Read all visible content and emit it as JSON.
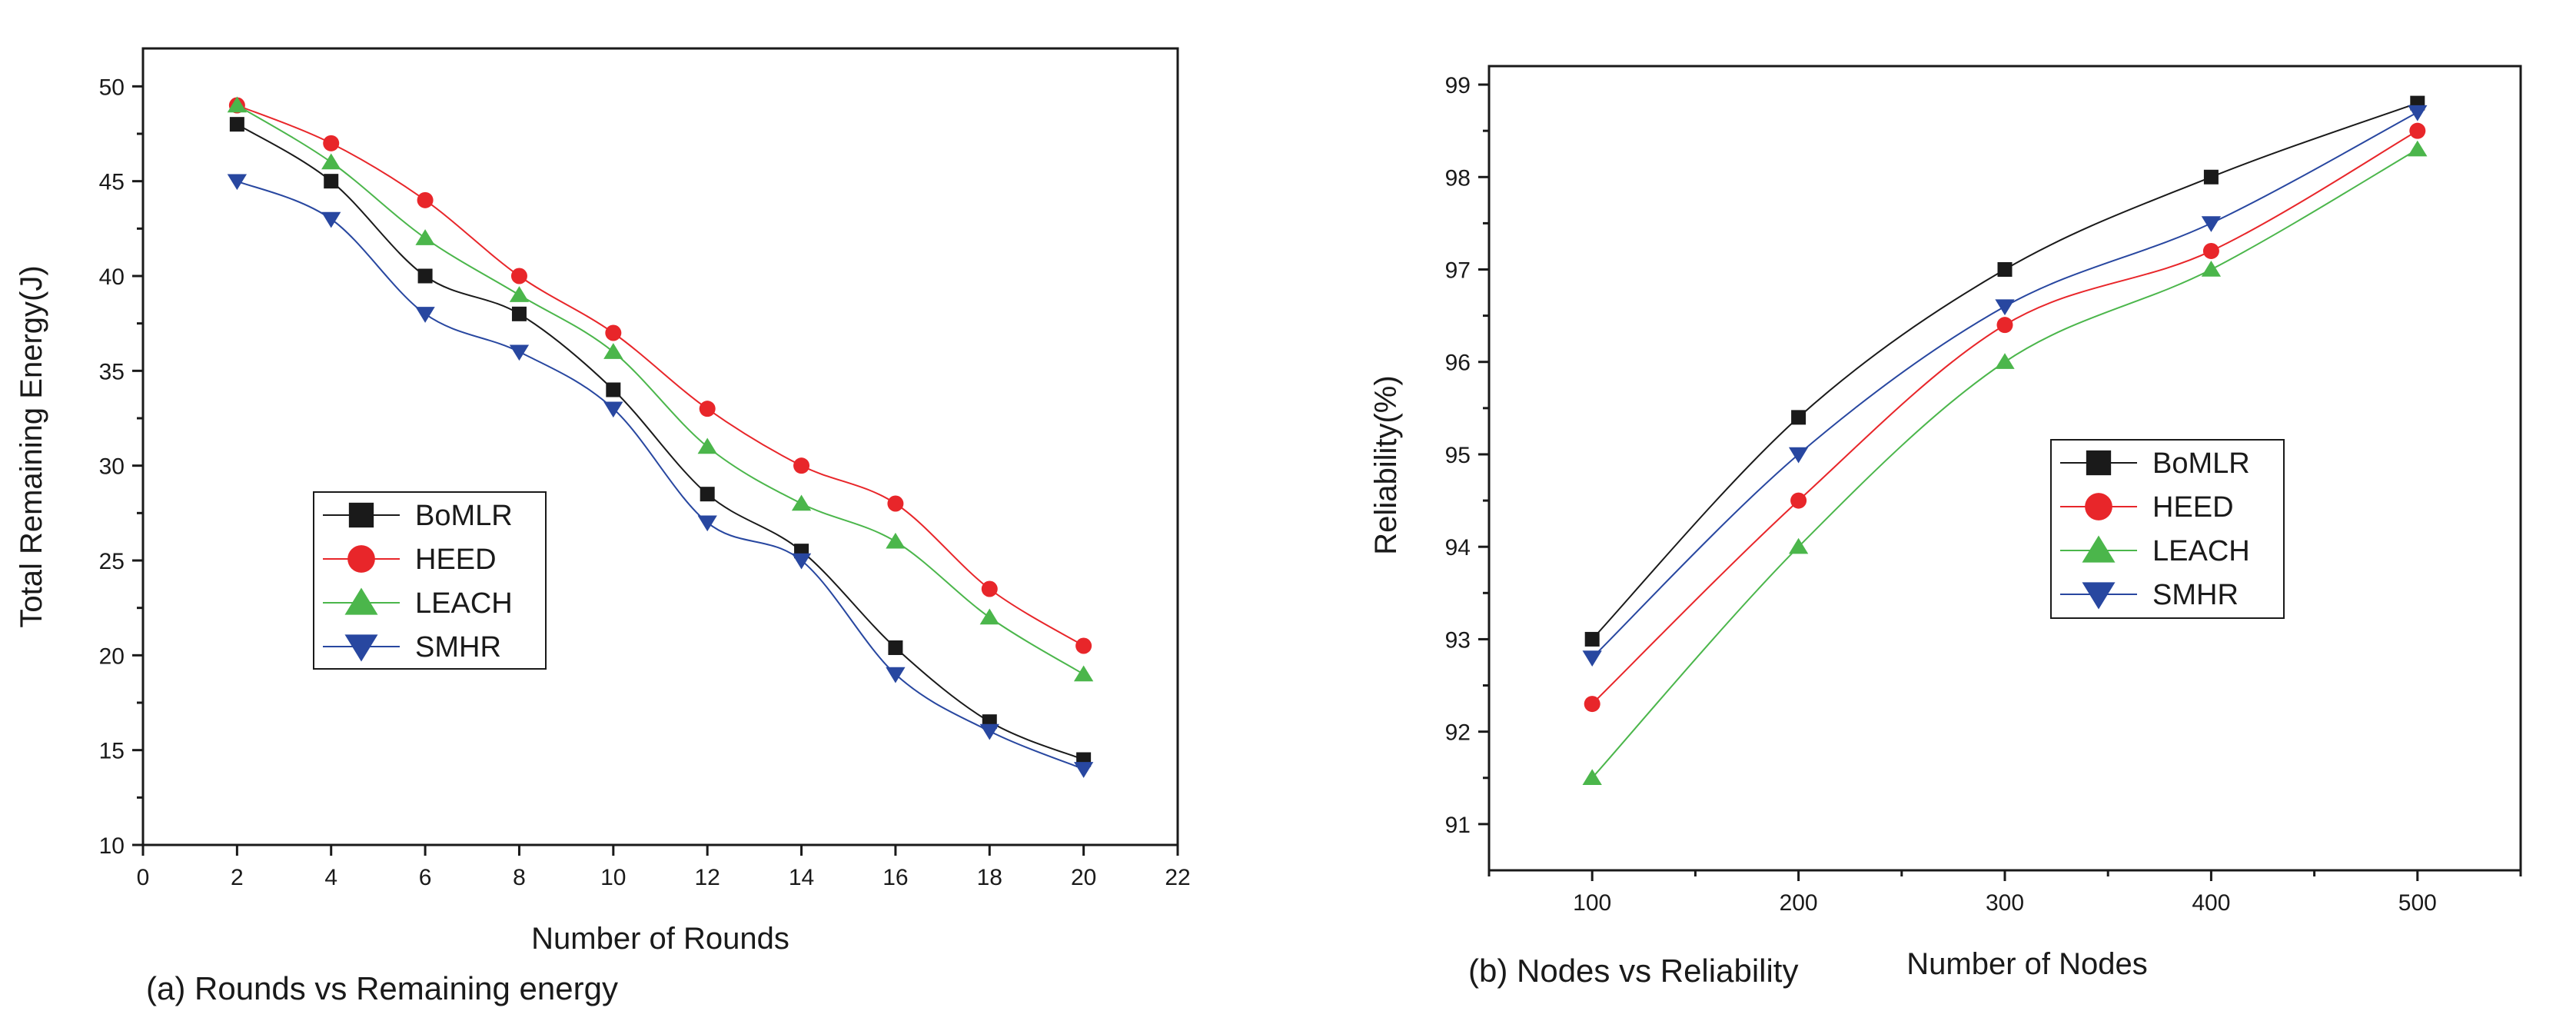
{
  "colors": {
    "BoMLR": "#1a1a1a",
    "HEED": "#e8262a",
    "LEACH": "#4bb64b",
    "SMHR": "#2847a0"
  },
  "chart_data": [
    {
      "type": "line",
      "caption": "(a) Rounds vs Remaining energy",
      "xlabel": "Number of Rounds",
      "ylabel": "Total Remaining Energy(J)",
      "xlim": [
        0,
        22
      ],
      "ylim": [
        10,
        52
      ],
      "xticks": [
        0,
        2,
        4,
        6,
        8,
        10,
        12,
        14,
        16,
        18,
        20,
        22
      ],
      "yticks": [
        10,
        15,
        20,
        25,
        30,
        35,
        40,
        45,
        50
      ],
      "legend_position": "center-left",
      "x": [
        2,
        4,
        6,
        8,
        10,
        12,
        14,
        16,
        18,
        20
      ],
      "series": [
        {
          "name": "BoMLR",
          "marker": "square",
          "values": [
            48,
            45,
            40,
            38,
            34,
            28.5,
            25.5,
            20.4,
            16.5,
            14.5
          ]
        },
        {
          "name": "HEED",
          "marker": "circle",
          "values": [
            49,
            47,
            44,
            40,
            37,
            33,
            30,
            28,
            23.5,
            20.5
          ]
        },
        {
          "name": "LEACH",
          "marker": "triangle-up",
          "values": [
            49,
            46,
            42,
            39,
            36,
            31,
            28,
            26,
            22,
            19
          ]
        },
        {
          "name": "SMHR",
          "marker": "triangle-down",
          "values": [
            45,
            43,
            38,
            36,
            33,
            27,
            25,
            19,
            16,
            14
          ]
        }
      ]
    },
    {
      "type": "line",
      "caption": "(b) Nodes vs Reliability",
      "xlabel": "Number of Nodes",
      "ylabel": "Reliability(%)",
      "xlim": [
        50,
        550
      ],
      "ylim": [
        90.5,
        99.2
      ],
      "xticks": [
        100,
        200,
        300,
        400,
        500
      ],
      "xminor": [
        50,
        150,
        250,
        350,
        450,
        550
      ],
      "yticks": [
        91,
        92,
        93,
        94,
        95,
        96,
        97,
        98,
        99
      ],
      "legend_position": "center-right",
      "x": [
        100,
        200,
        300,
        400,
        500
      ],
      "series": [
        {
          "name": "BoMLR",
          "marker": "square",
          "values": [
            93.0,
            95.4,
            97.0,
            98.0,
            98.8
          ]
        },
        {
          "name": "HEED",
          "marker": "circle",
          "values": [
            92.3,
            94.5,
            96.4,
            97.2,
            98.5
          ]
        },
        {
          "name": "LEACH",
          "marker": "triangle-up",
          "values": [
            91.5,
            94.0,
            96.0,
            97.0,
            98.3
          ]
        },
        {
          "name": "SMHR",
          "marker": "triangle-down",
          "values": [
            92.8,
            95.0,
            96.6,
            97.5,
            98.7
          ]
        }
      ]
    }
  ]
}
